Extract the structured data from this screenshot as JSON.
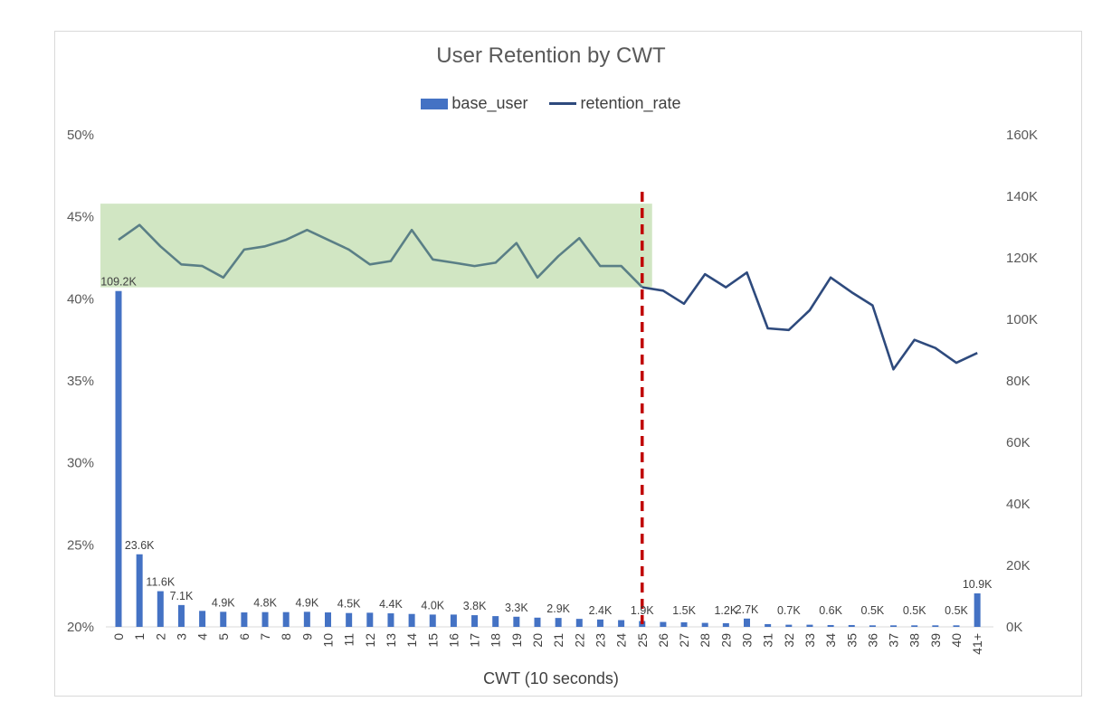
{
  "chart_data": {
    "type": "bar",
    "title": "User Retention by CWT",
    "xlabel": "CWT (10 seconds)",
    "categories": [
      "0",
      "1",
      "2",
      "3",
      "4",
      "5",
      "6",
      "7",
      "8",
      "9",
      "10",
      "11",
      "12",
      "13",
      "14",
      "15",
      "16",
      "17",
      "18",
      "19",
      "20",
      "21",
      "22",
      "23",
      "24",
      "25",
      "26",
      "27",
      "28",
      "29",
      "30",
      "31",
      "32",
      "33",
      "34",
      "35",
      "36",
      "37",
      "38",
      "39",
      "40",
      "41+"
    ],
    "series": [
      {
        "name": "base_user",
        "type": "bar",
        "axis": "right",
        "color": "#4472c4",
        "values": [
          109200,
          23600,
          11600,
          7100,
          5200,
          4900,
          4700,
          4800,
          4800,
          4900,
          4700,
          4500,
          4600,
          4400,
          4200,
          4000,
          4000,
          3800,
          3500,
          3300,
          3000,
          2900,
          2600,
          2400,
          2200,
          1900,
          1600,
          1500,
          1300,
          1200,
          2700,
          900,
          700,
          700,
          600,
          600,
          500,
          500,
          500,
          500,
          500,
          10900
        ]
      },
      {
        "name": "retention_rate",
        "type": "line",
        "axis": "left",
        "color": "#2e4a7d",
        "values": [
          0.436,
          0.445,
          0.432,
          0.421,
          0.42,
          0.413,
          0.43,
          0.432,
          0.436,
          0.442,
          0.436,
          0.43,
          0.421,
          0.423,
          0.442,
          0.424,
          0.422,
          0.42,
          0.422,
          0.434,
          0.413,
          0.426,
          0.437,
          0.42,
          0.42,
          0.407,
          0.405,
          0.397,
          0.415,
          0.407,
          0.416,
          0.382,
          0.381,
          0.393,
          0.413,
          0.404,
          0.396,
          0.357,
          0.375,
          0.37,
          0.361,
          0.367
        ]
      }
    ],
    "data_labels": {
      "0": "109.2K",
      "1": "23.6K",
      "2": "11.6K",
      "3": "7.1K",
      "5": "4.9K",
      "7": "4.8K",
      "9": "4.9K",
      "11": "4.5K",
      "13": "4.4K",
      "15": "4.0K",
      "17": "3.8K",
      "19": "3.3K",
      "21": "2.9K",
      "23": "2.4K",
      "25": "1.9K",
      "27": "1.5K",
      "29": "1.2K",
      "30": "2.7K",
      "32": "0.7K",
      "34": "0.6K",
      "36": "0.5K",
      "38": "0.5K",
      "40": "0.5K",
      "41": "10.9K"
    },
    "y_left": {
      "min": 0.2,
      "max": 0.5,
      "ticks": [
        "20%",
        "25%",
        "30%",
        "35%",
        "40%",
        "45%",
        "50%"
      ],
      "tick_values": [
        0.2,
        0.25,
        0.3,
        0.35,
        0.4,
        0.45,
        0.5
      ]
    },
    "y_right": {
      "min": 0,
      "max": 160000,
      "ticks": [
        "0K",
        "20K",
        "40K",
        "60K",
        "80K",
        "100K",
        "120K",
        "140K",
        "160K"
      ],
      "tick_values": [
        0,
        20000,
        40000,
        60000,
        80000,
        100000,
        120000,
        140000,
        160000
      ]
    },
    "grid": false,
    "legend_position": "top-center",
    "annotations": {
      "highlight_region": {
        "x_from": "0",
        "x_to": "25",
        "y_from": 0.407,
        "y_to": 0.458,
        "color": "#c6e0b4",
        "line_color": "#5a7f86"
      },
      "vertical_line": {
        "x": "25",
        "color": "#c00000",
        "style": "dashed"
      }
    }
  }
}
